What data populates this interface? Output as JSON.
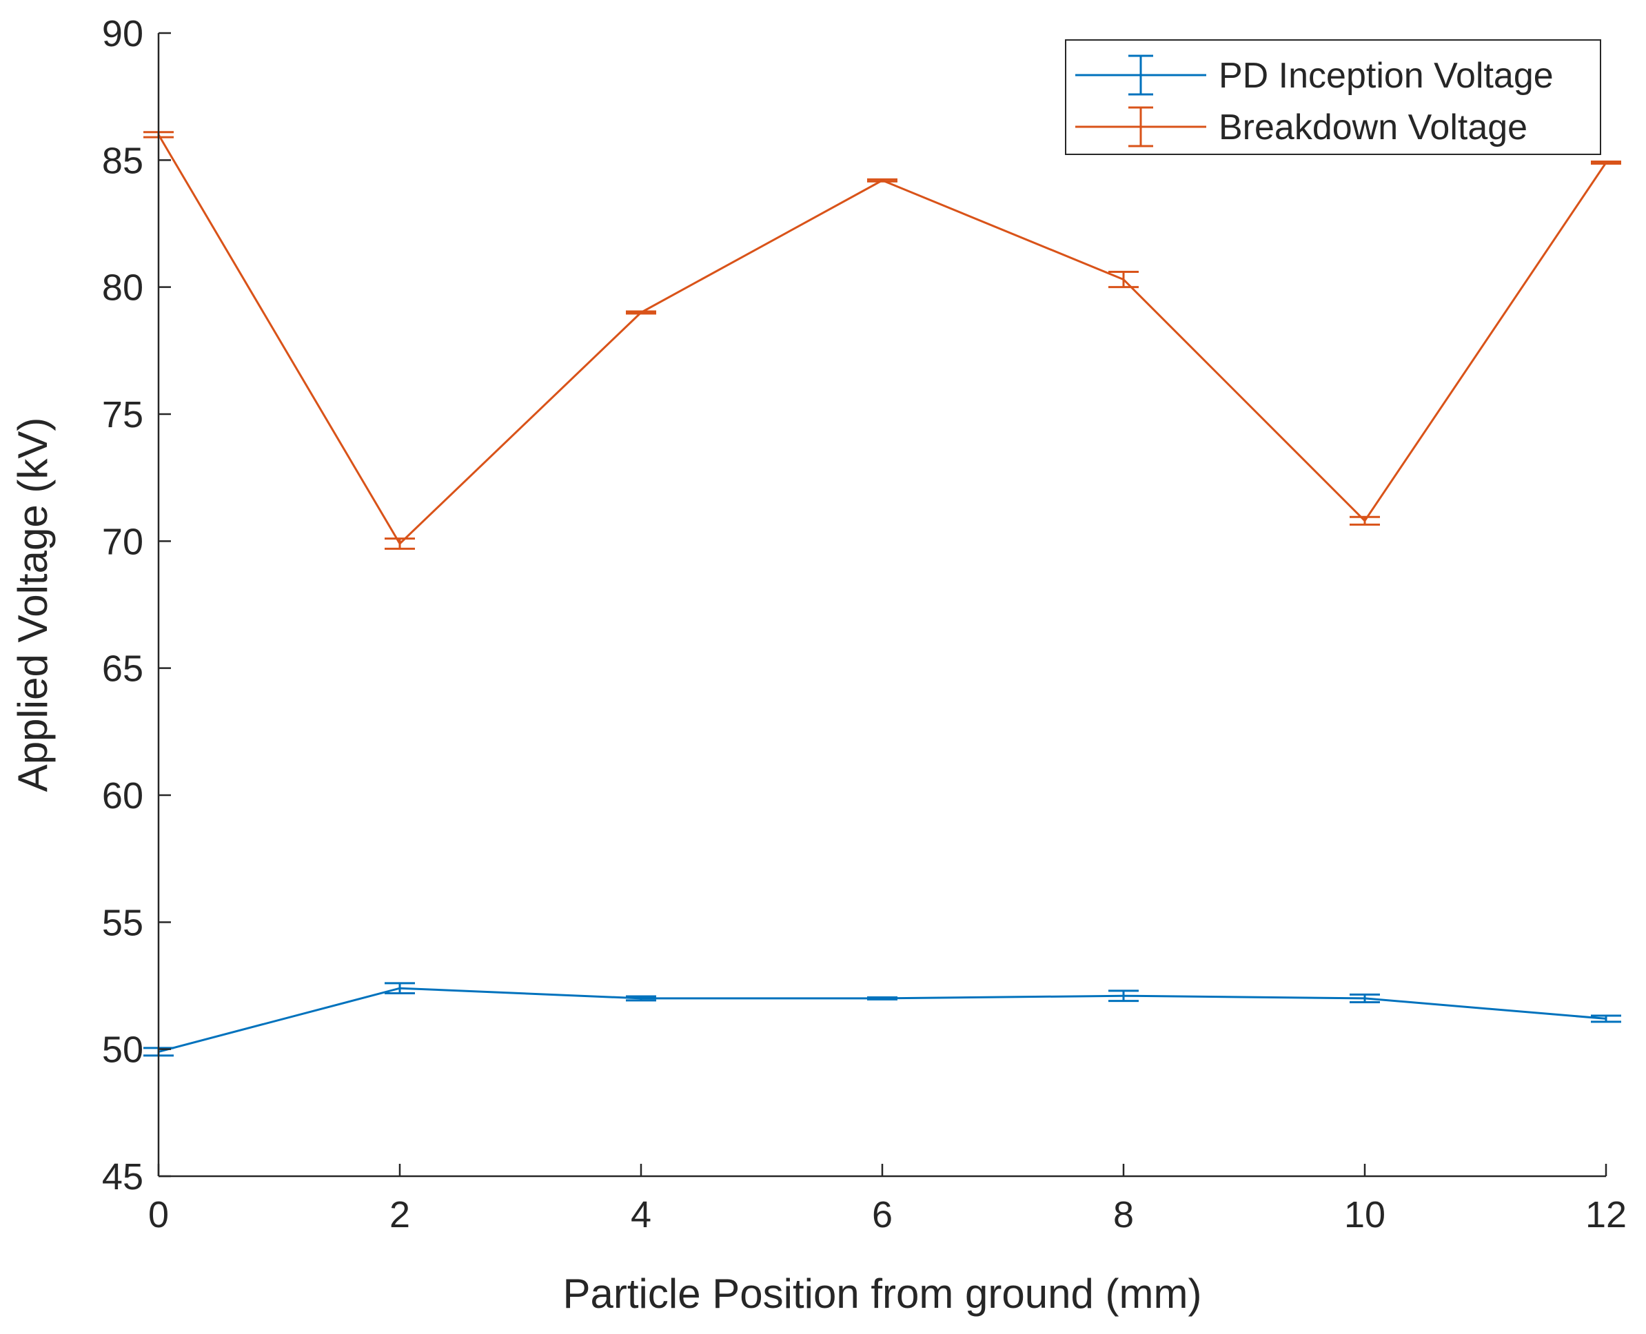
{
  "chart_data": {
    "type": "line",
    "title": "",
    "xlabel": "Particle Position from ground (mm)",
    "ylabel": "Applied Voltage (kV)",
    "xlim": [
      0,
      12
    ],
    "ylim": [
      45,
      90
    ],
    "x_ticks": [
      0,
      2,
      4,
      6,
      8,
      10,
      12
    ],
    "y_ticks": [
      45,
      50,
      55,
      60,
      65,
      70,
      75,
      80,
      85,
      90
    ],
    "grid": false,
    "legend_position": "top-right",
    "x": [
      0,
      2,
      4,
      6,
      8,
      10,
      12
    ],
    "series": [
      {
        "name": "PD Inception Voltage",
        "color": "#0072BD",
        "values": [
          49.9,
          52.4,
          52.0,
          52.0,
          52.1,
          52.0,
          51.2
        ],
        "errors": [
          0.15,
          0.2,
          0.08,
          0.04,
          0.2,
          0.15,
          0.12
        ]
      },
      {
        "name": "Breakdown Voltage",
        "color": "#D95319",
        "values": [
          86.0,
          69.9,
          79.0,
          84.2,
          80.3,
          70.8,
          84.9
        ],
        "errors": [
          0.1,
          0.2,
          0.04,
          0.04,
          0.3,
          0.15,
          0.04
        ]
      }
    ]
  }
}
